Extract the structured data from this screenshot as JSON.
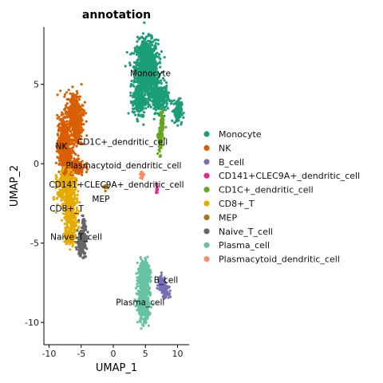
{
  "chart_data": {
    "type": "scatter",
    "title": "annotation",
    "xlabel": "UMAP_1",
    "ylabel": "UMAP_2",
    "xlim": [
      -10.8,
      11.8
    ],
    "ylim": [
      -11.4,
      8.6
    ],
    "x_ticks": [
      -10,
      -5,
      0,
      5,
      10
    ],
    "y_ticks": [
      5,
      0,
      -5,
      -10
    ],
    "grid": false,
    "legend_position": "right",
    "series": [
      {
        "name": "Monocyte",
        "color": "#1b9e77",
        "label_x": 2.6,
        "label_y": 5.5,
        "clusters": [
          [
            5.2,
            6.0,
            1.6,
            1.6,
            1100
          ],
          [
            7.2,
            4.1,
            1.2,
            0.8,
            320
          ],
          [
            10.0,
            3.3,
            0.6,
            0.7,
            120
          ],
          [
            4.0,
            4.0,
            0.9,
            1.0,
            200
          ]
        ]
      },
      {
        "name": "NK",
        "color": "#d95f02",
        "label_x": -9.0,
        "label_y": 0.9,
        "clusters": [
          [
            -6.0,
            3.2,
            1.2,
            1.2,
            320
          ],
          [
            -7.7,
            1.2,
            0.9,
            1.6,
            420
          ],
          [
            -6.3,
            -0.2,
            1.6,
            0.5,
            220
          ],
          [
            -5.6,
            2.0,
            0.7,
            1.0,
            160
          ]
        ]
      },
      {
        "name": "B_cell",
        "color": "#7570b3",
        "label_x": 6.3,
        "label_y": -7.5,
        "clusters": [
          [
            7.6,
            -7.6,
            0.5,
            0.4,
            160
          ],
          [
            8.2,
            -8.1,
            0.4,
            0.3,
            80
          ]
        ]
      },
      {
        "name": "CD141+CLEC9A+_dendritic_cell",
        "color": "#e7298a",
        "label_x": -10.0,
        "label_y": -1.5,
        "clusters": [
          [
            6.8,
            -1.6,
            0.12,
            0.3,
            25
          ]
        ]
      },
      {
        "name": "CD1C+_dendritic_cell",
        "color": "#66a61e",
        "label_x": -5.6,
        "label_y": 1.2,
        "clusters": [
          [
            7.3,
            1.5,
            0.3,
            0.8,
            110
          ],
          [
            7.6,
            2.6,
            0.25,
            0.6,
            60
          ]
        ]
      },
      {
        "name": "CD8+_T",
        "color": "#e6ab02",
        "label_x": -9.9,
        "label_y": -3.0,
        "clusters": [
          [
            -7.3,
            -1.6,
            1.3,
            1.0,
            320
          ],
          [
            -6.6,
            -3.2,
            1.0,
            1.0,
            220
          ],
          [
            -6.8,
            -4.6,
            0.8,
            0.5,
            100
          ]
        ]
      },
      {
        "name": "MEP",
        "color": "#a6761d",
        "label_x": -3.3,
        "label_y": -2.4,
        "clusters": [
          [
            -1.2,
            -1.5,
            0.3,
            0.25,
            12
          ]
        ]
      },
      {
        "name": "Naive_T_cell",
        "color": "#666666",
        "label_x": -9.8,
        "label_y": -4.8,
        "clusters": [
          [
            -4.9,
            -4.9,
            0.7,
            0.8,
            170
          ],
          [
            -4.6,
            -3.9,
            0.3,
            0.4,
            40
          ]
        ]
      },
      {
        "name": "Plasma_cell",
        "color": "#66c2a5",
        "label_x": 0.4,
        "label_y": -8.9,
        "clusters": [
          [
            4.8,
            -7.3,
            0.9,
            0.9,
            330
          ],
          [
            4.7,
            -9.0,
            0.8,
            0.9,
            280
          ],
          [
            5.0,
            -6.6,
            0.5,
            0.4,
            80
          ]
        ]
      },
      {
        "name": "Plasmacytoid_dendritic_cell",
        "color": "#fc8d62",
        "label_x": -7.4,
        "label_y": -0.3,
        "clusters": [
          [
            4.5,
            -0.7,
            0.25,
            0.2,
            25
          ]
        ]
      }
    ]
  }
}
